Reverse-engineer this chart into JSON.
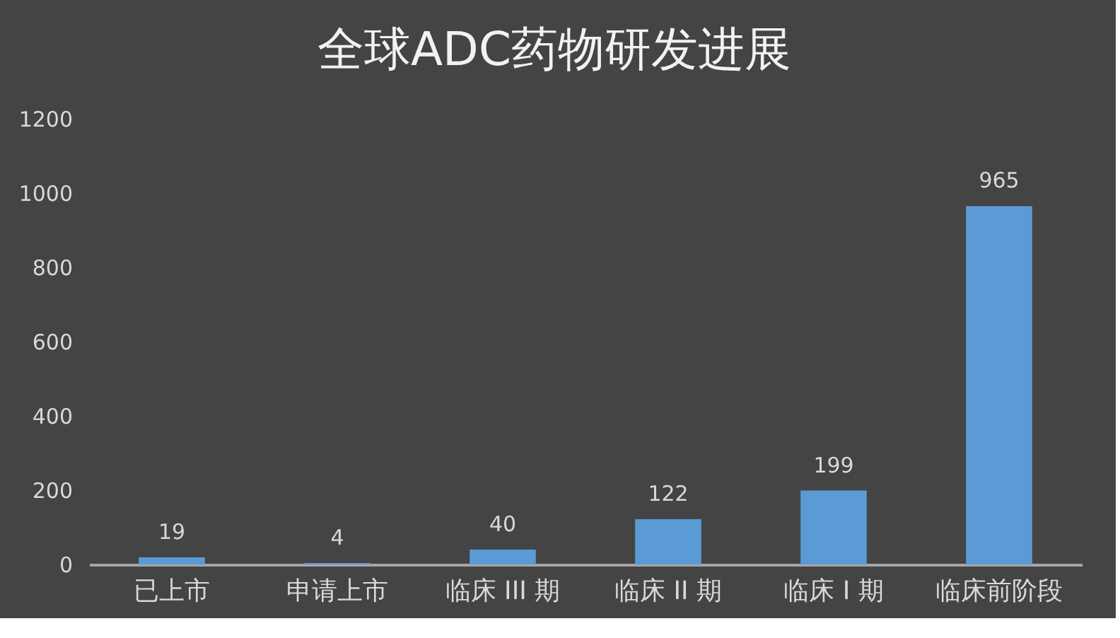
{
  "chart_data": {
    "type": "bar",
    "title": "全球ADC药物研发进展",
    "categories": [
      "已上市",
      "申请上市",
      "临床 III 期",
      "临床 II 期",
      "临床 I 期",
      "临床前阶段"
    ],
    "values": [
      19,
      4,
      40,
      122,
      199,
      965
    ],
    "color": "#5b9bd5",
    "ylim": [
      0,
      1200
    ],
    "yticks": [
      0,
      200,
      400,
      600,
      800,
      1000,
      1200
    ],
    "data_labels": true
  }
}
